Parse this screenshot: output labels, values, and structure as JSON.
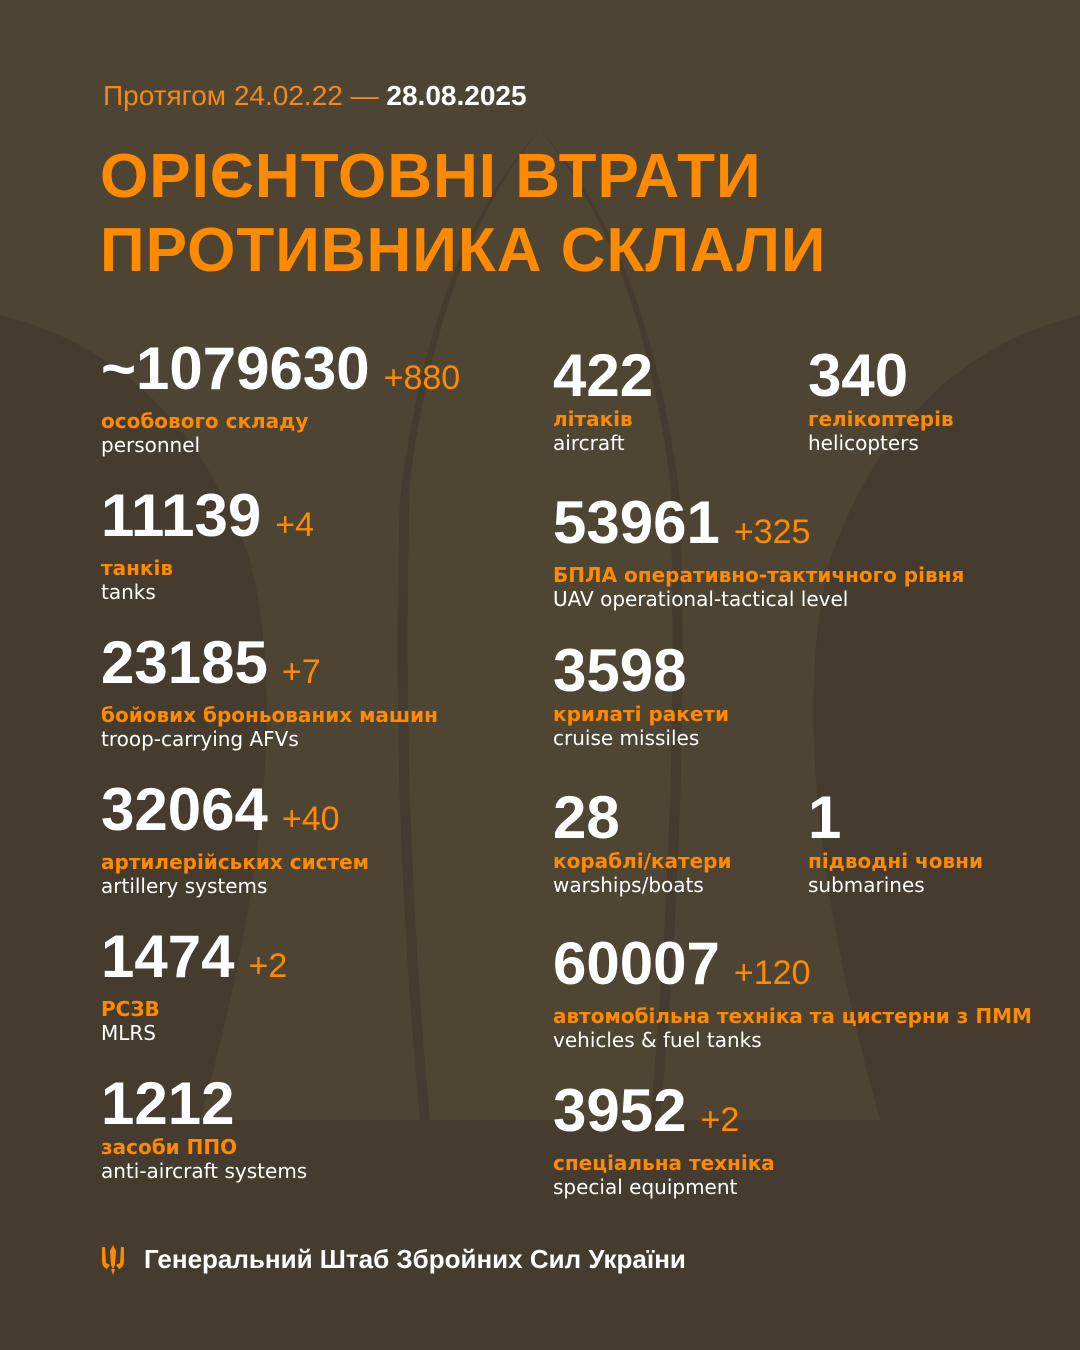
{
  "header": {
    "period_prefix": "Протягом 24.02.22 —",
    "period_end": "28.08.2025",
    "title_line1": "ОРІЄНТОВНІ ВТРАТИ",
    "title_line2": "ПРОТИВНИКА СКЛАЛИ"
  },
  "colors": {
    "background": "#453c2f",
    "accent": "#ff8a00",
    "text": "#ffffff"
  },
  "left": [
    {
      "value": "~1079630",
      "delta": "+880",
      "uk": "особового складу",
      "en": "personnel"
    },
    {
      "value": "11139",
      "delta": "+4",
      "uk": "танків",
      "en": "tanks"
    },
    {
      "value": "23185",
      "delta": "+7",
      "uk": "бойових броньованих машин",
      "en": "troop-carrying AFVs"
    },
    {
      "value": "32064",
      "delta": "+40",
      "uk": "артилерійських систем",
      "en": "artillery systems"
    },
    {
      "value": "1474",
      "delta": "+2",
      "uk": "РСЗВ",
      "en": "MLRS"
    },
    {
      "value": "1212",
      "delta": "",
      "uk": "засоби ППО",
      "en": "anti-aircraft systems"
    }
  ],
  "right": [
    {
      "value": "422",
      "delta": "",
      "uk": "літаків",
      "en": "aircraft"
    },
    {
      "value": "340",
      "delta": "",
      "uk": "гелікоптерів",
      "en": "helicopters"
    },
    {
      "value": "53961",
      "delta": "+325",
      "uk": "БПЛА оперативно-тактичного рівня",
      "en": "UAV operational-tactical level"
    },
    {
      "value": "3598",
      "delta": "",
      "uk": "крилаті ракети",
      "en": "cruise missiles"
    },
    {
      "value": "28",
      "delta": "",
      "uk": "кораблі/катери",
      "en": "warships/boats"
    },
    {
      "value": "1",
      "delta": "",
      "uk": "підводні човни",
      "en": "submarines"
    },
    {
      "value": "60007",
      "delta": "+120",
      "uk": "автомобільна техніка та цистерни з ПММ",
      "en": "vehicles & fuel tanks"
    },
    {
      "value": "3952",
      "delta": "+2",
      "uk": "спеціальна техніка",
      "en": "special equipment"
    }
  ],
  "footer": {
    "logo_icon": "trident-icon",
    "org": "Генеральний Штаб Збройних Сил України"
  }
}
